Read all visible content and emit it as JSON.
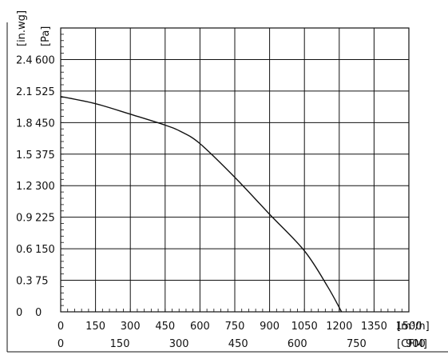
{
  "chart_data": {
    "type": "line",
    "x_axis": {
      "unit": "[m³/h]",
      "range": [
        0,
        1500
      ],
      "ticks": [
        0,
        150,
        300,
        450,
        600,
        750,
        900,
        1050,
        1200,
        1350,
        1500
      ]
    },
    "x_axis_secondary": {
      "unit": "[CFM]",
      "ticks": [
        0,
        150,
        300,
        450,
        600,
        750,
        900
      ]
    },
    "y_axis": {
      "unit": "[Pa]",
      "range": [
        0,
        675
      ],
      "ticks": [
        0,
        75,
        150,
        225,
        300,
        375,
        450,
        525,
        600
      ]
    },
    "y_axis_secondary": {
      "unit": "[in.wg]",
      "ticks": [
        "0",
        "0.3",
        "0.6",
        "0.9",
        "1.2",
        "1.5",
        "1.8",
        "2.1",
        "2.4"
      ]
    },
    "grid": true,
    "series": [
      {
        "x": [
          0,
          150,
          300,
          450,
          520,
          600,
          750,
          900,
          1050,
          1150,
          1210
        ],
        "y": [
          512,
          495,
          470,
          444,
          428,
          400,
          320,
          232,
          145,
          60,
          0
        ]
      }
    ]
  }
}
